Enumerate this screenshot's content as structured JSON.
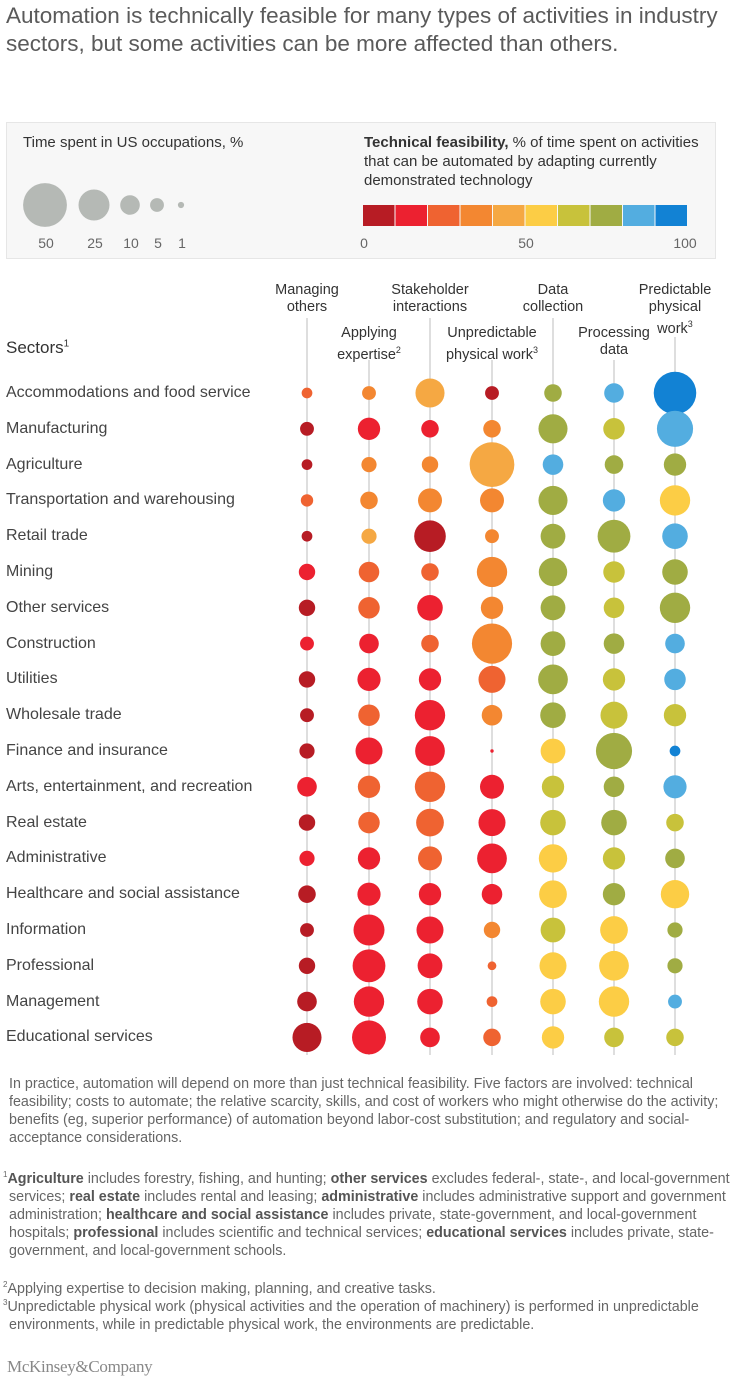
{
  "title": "Automation is technically feasible for many types of activities in industry sectors, but some activities can be more affected than others.",
  "legend": {
    "size_title": "Time spent in US occupations,",
    "size_unit": "%",
    "size_values": [
      50,
      25,
      10,
      5,
      1
    ],
    "size_labels": [
      "50",
      "25",
      "10",
      "5",
      "1"
    ],
    "color_title_bold": "Technical feasibility,",
    "color_title_rest": "% of time spent on activities that can be automated by adapting currently demonstrated technology",
    "color_scale": [
      "#b71c24",
      "#ec2130",
      "#ef6331",
      "#f38731",
      "#f5a843",
      "#fccd45",
      "#c8c23b",
      "#a0ac43",
      "#53ade0",
      "#1282d4"
    ],
    "color_ticks": [
      "0",
      "50",
      "100"
    ]
  },
  "sectors_label": "Sectors",
  "sectors_sup": "1",
  "chart_data": {
    "type": "bubble-matrix",
    "size_measure": "Time spent in US occupations, %",
    "color_measure": "Technical feasibility, % of time spent on activities that can be automated",
    "color_range": [
      0,
      100
    ],
    "columns": [
      {
        "label": "Managing others",
        "sup": ""
      },
      {
        "label": "Applying expertise",
        "sup": "2"
      },
      {
        "label": "Stakeholder interactions",
        "sup": ""
      },
      {
        "label": "Unpredictable physical work",
        "sup": "3"
      },
      {
        "label": "Data collection",
        "sup": ""
      },
      {
        "label": "Processing data",
        "sup": ""
      },
      {
        "label": "Predictable physical work",
        "sup": "3"
      }
    ],
    "rows": [
      {
        "sector": "Accommodations and food service",
        "time": [
          3,
          5,
          22,
          5,
          8,
          10,
          47
        ],
        "feasibility": [
          25,
          35,
          45,
          5,
          75,
          85,
          95
        ]
      },
      {
        "sector": "Manufacturing",
        "time": [
          5,
          13,
          8,
          8,
          22,
          12,
          34
        ],
        "feasibility": [
          5,
          15,
          15,
          35,
          75,
          65,
          85
        ]
      },
      {
        "sector": "Agriculture",
        "time": [
          3,
          6,
          7,
          52,
          11,
          9,
          13
        ],
        "feasibility": [
          5,
          35,
          35,
          45,
          85,
          75,
          75
        ]
      },
      {
        "sector": "Transportation and warehousing",
        "time": [
          4,
          8,
          15,
          15,
          22,
          13,
          24
        ],
        "feasibility": [
          25,
          35,
          35,
          35,
          75,
          85,
          55
        ]
      },
      {
        "sector": "Retail trade",
        "time": [
          3,
          6,
          26,
          5,
          16,
          28,
          17
        ],
        "feasibility": [
          5,
          45,
          5,
          35,
          75,
          75,
          85
        ]
      },
      {
        "sector": "Mining",
        "time": [
          7,
          11,
          8,
          24,
          21,
          12,
          17
        ],
        "feasibility": [
          15,
          25,
          25,
          35,
          75,
          65,
          75
        ]
      },
      {
        "sector": "Other services",
        "time": [
          7,
          12,
          17,
          13,
          16,
          11,
          24
        ],
        "feasibility": [
          5,
          25,
          15,
          35,
          75,
          65,
          75
        ]
      },
      {
        "sector": "Construction",
        "time": [
          5,
          10,
          8,
          42,
          16,
          11,
          10
        ],
        "feasibility": [
          15,
          15,
          25,
          35,
          75,
          75,
          85
        ]
      },
      {
        "sector": "Utilities",
        "time": [
          7,
          14,
          13,
          19,
          23,
          13,
          12
        ],
        "feasibility": [
          5,
          15,
          15,
          25,
          75,
          65,
          85
        ]
      },
      {
        "sector": "Wholesale trade",
        "time": [
          5,
          12,
          24,
          11,
          17,
          19,
          13
        ],
        "feasibility": [
          5,
          25,
          15,
          35,
          75,
          65,
          65
        ]
      },
      {
        "sector": "Finance and insurance",
        "time": [
          6,
          19,
          23,
          0.3,
          16,
          34,
          3
        ],
        "feasibility": [
          5,
          15,
          15,
          15,
          55,
          75,
          95
        ]
      },
      {
        "sector": "Arts, entertainment, and recreation",
        "time": [
          10,
          13,
          24,
          15,
          13,
          11,
          14
        ],
        "feasibility": [
          15,
          25,
          25,
          15,
          65,
          75,
          85
        ]
      },
      {
        "sector": "Real estate",
        "time": [
          7,
          12,
          20,
          19,
          17,
          17,
          8
        ],
        "feasibility": [
          5,
          25,
          25,
          15,
          65,
          75,
          65
        ]
      },
      {
        "sector": "Administrative",
        "time": [
          6,
          13,
          15,
          23,
          21,
          13,
          10
        ],
        "feasibility": [
          15,
          15,
          25,
          15,
          55,
          65,
          75
        ]
      },
      {
        "sector": "Healthcare and social assistance",
        "time": [
          8,
          14,
          13,
          11,
          20,
          13,
          21
        ],
        "feasibility": [
          5,
          15,
          15,
          15,
          55,
          75,
          55
        ]
      },
      {
        "sector": "Information",
        "time": [
          5,
          25,
          19,
          7,
          16,
          20,
          6
        ],
        "feasibility": [
          5,
          15,
          15,
          35,
          65,
          55,
          75
        ]
      },
      {
        "sector": "Professional",
        "time": [
          7,
          28,
          16,
          2,
          19,
          23,
          6
        ],
        "feasibility": [
          5,
          15,
          15,
          25,
          55,
          55,
          75
        ]
      },
      {
        "sector": "Management",
        "time": [
          10,
          24,
          17,
          3,
          17,
          24,
          5
        ],
        "feasibility": [
          5,
          15,
          15,
          25,
          55,
          55,
          85
        ]
      },
      {
        "sector": "Educational services",
        "time": [
          22,
          30,
          10,
          8,
          13,
          10,
          8
        ],
        "feasibility": [
          5,
          15,
          15,
          25,
          55,
          65,
          65
        ]
      }
    ]
  },
  "note": "In practice, automation will depend on more than just technical feasibility. Five factors are involved: technical feasibility; costs to automate; the relative scarcity, skills, and cost of workers who might otherwise do the activity; benefits (eg, superior performance) of automation beyond labor-cost substitution; and regulatory and social-acceptance considerations.",
  "footnotes": [
    {
      "sup": "1",
      "segments": [
        {
          "t": "Agriculture",
          "b": true
        },
        {
          "t": " includes forestry, fishing, and hunting; ",
          "b": false
        },
        {
          "t": "other services",
          "b": true
        },
        {
          "t": " excludes federal-, state-, and local-government services; ",
          "b": false
        },
        {
          "t": "real estate",
          "b": true
        },
        {
          "t": " includes rental and leasing; ",
          "b": false
        },
        {
          "t": "administrative",
          "b": true
        },
        {
          "t": " includes administrative support and government administration; ",
          "b": false
        },
        {
          "t": "healthcare and social assistance",
          "b": true
        },
        {
          "t": " includes private, state-government, and local-government hospitals; ",
          "b": false
        },
        {
          "t": "professional",
          "b": true
        },
        {
          "t": " includes scientific and technical services; ",
          "b": false
        },
        {
          "t": "educational services",
          "b": true
        },
        {
          "t": " includes private, state-government, and local-government schools.",
          "b": false
        }
      ]
    },
    {
      "sup": "2",
      "segments": [
        {
          "t": "Applying expertise to decision making, planning, and creative tasks.",
          "b": false
        }
      ]
    },
    {
      "sup": "3",
      "segments": [
        {
          "t": "Unpredictable physical work (physical activities and the operation of machinery) is performed in unpredictable environments, while in predictable physical work, the environments are predictable.",
          "b": false
        }
      ]
    }
  ],
  "logo": "McKinsey&Company"
}
